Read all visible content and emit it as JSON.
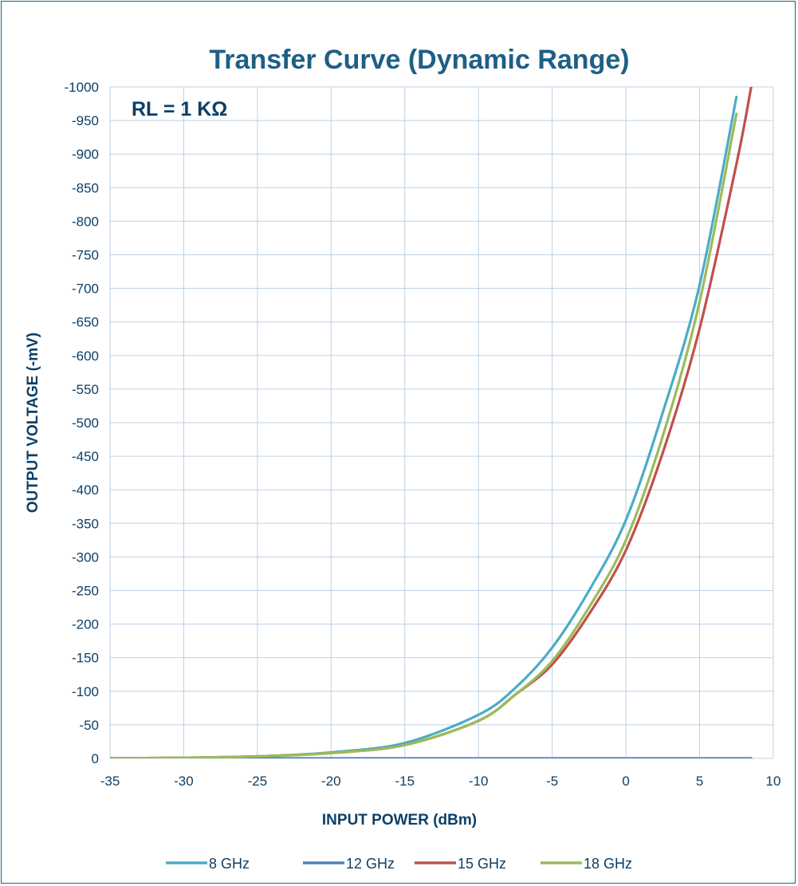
{
  "chart_data": {
    "type": "line",
    "title": "Transfer Curve (Dynamic  Range)",
    "xlabel": "INPUT POWER (dBm)",
    "ylabel": "OUTPUT VOLTAGE (-mV)",
    "annotation": "RL = 1 KΩ",
    "xlim": [
      -35,
      10
    ],
    "ylim": [
      0,
      -1000
    ],
    "y_axis_inverted": true,
    "x_ticks": [
      "-35",
      "-30",
      "-25",
      "-20",
      "-15",
      "-10",
      "-5",
      "0",
      "5",
      "10"
    ],
    "y_ticks": [
      "-1000",
      "-950",
      "-900",
      "-850",
      "-800",
      "-750",
      "-700",
      "-650",
      "-600",
      "-550",
      "-500",
      "-450",
      "-400",
      "-350",
      "-300",
      "-250",
      "-200",
      "-150",
      "-100",
      "-50",
      "0"
    ],
    "grid": true,
    "legend_position": "bottom",
    "x": [
      -35,
      -30,
      -25,
      -20,
      -15,
      -10,
      -7.5,
      -5,
      -2.5,
      0,
      2.5,
      5,
      7.5,
      8.5
    ],
    "series": [
      {
        "name": "8 GHz",
        "color": "#4bacc6",
        "values": [
          0,
          -1,
          -3,
          -9,
          -23,
          -65,
          -105,
          -165,
          -250,
          -355,
          -515,
          -705,
          -985,
          null
        ]
      },
      {
        "name": "12 GHz",
        "color": "#4f81bd",
        "values": [
          0,
          0,
          0,
          0,
          0,
          0,
          0,
          0,
          0,
          0,
          0,
          0,
          0,
          0
        ]
      },
      {
        "name": "15 GHz",
        "color": "#c0504d",
        "values": [
          0,
          -1,
          -3,
          -8,
          -20,
          -56,
          -95,
          -140,
          -215,
          -310,
          -455,
          -640,
          -885,
          -1000
        ]
      },
      {
        "name": "18 GHz",
        "color": "#9bbb59",
        "values": [
          0,
          -1,
          -3,
          -8,
          -20,
          -56,
          -95,
          -145,
          -225,
          -325,
          -480,
          -680,
          -960,
          null
        ]
      }
    ]
  }
}
